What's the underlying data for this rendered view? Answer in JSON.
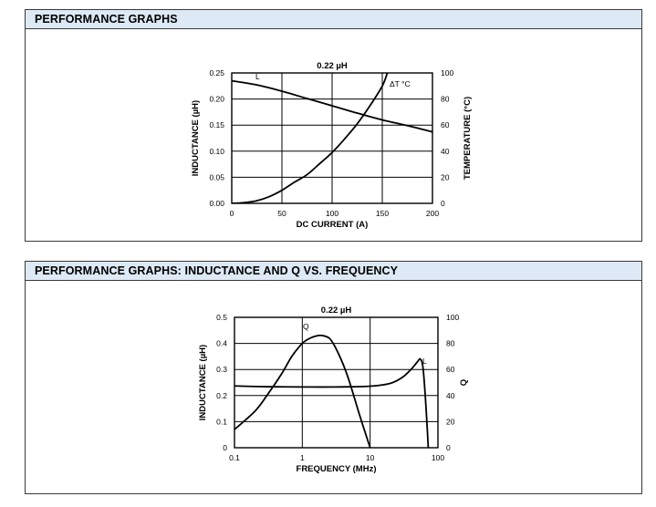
{
  "panels": [
    {
      "header": "PERFORMANCE GRAPHS"
    },
    {
      "header": "PERFORMANCE GRAPHS: INDUCTANCE AND Q VS. FREQUENCY"
    }
  ],
  "chart_data": [
    {
      "type": "line",
      "title": "0.22 µH",
      "xlabel": "DC CURRENT (A)",
      "ylabel": "INDUCTANCE (µH)",
      "y2label": "TEMPERATURE (°C)",
      "xlim": [
        0,
        200
      ],
      "ylim": [
        0,
        0.25
      ],
      "y2lim": [
        0,
        100
      ],
      "x_ticks": [
        "0",
        "50",
        "100",
        "150",
        "200"
      ],
      "y_ticks": [
        "0.00",
        "0.05",
        "0.10",
        "0.15",
        "0.20",
        "0.25"
      ],
      "y2_ticks": [
        "0",
        "20",
        "40",
        "60",
        "80",
        "100"
      ],
      "grid": true,
      "series": [
        {
          "name": "L",
          "axis": "left",
          "x": [
            0,
            25,
            50,
            75,
            100,
            125,
            150,
            175,
            200
          ],
          "y": [
            0.235,
            0.227,
            0.215,
            0.201,
            0.187,
            0.173,
            0.16,
            0.149,
            0.137
          ]
        },
        {
          "name": "ΔT °C",
          "axis": "right",
          "x": [
            0,
            12,
            25,
            37,
            50,
            62,
            75,
            87,
            100,
            112,
            125,
            137,
            150,
            155
          ],
          "y": [
            0,
            0.5,
            2,
            5,
            10,
            16,
            22,
            30,
            39,
            49,
            61,
            74,
            90,
            100
          ]
        }
      ]
    },
    {
      "type": "line",
      "title": "0.22 µH",
      "xlabel": "FREQUENCY (MHz)",
      "ylabel": "INDUCTANCE (µH)",
      "y2label": "Q",
      "x_scale": "log",
      "xlim": [
        0.1,
        100
      ],
      "ylim": [
        0,
        0.5
      ],
      "y2lim": [
        0,
        100
      ],
      "x_ticks": [
        "0.1",
        "1",
        "10",
        "100"
      ],
      "y_ticks": [
        "0",
        "0.1",
        "0.2",
        "0.3",
        "0.4",
        "0.5"
      ],
      "y2_ticks": [
        "0",
        "20",
        "40",
        "60",
        "80",
        "100"
      ],
      "grid": true,
      "series": [
        {
          "name": "L",
          "axis": "left",
          "x": [
            0.1,
            0.3,
            1,
            3,
            10,
            20,
            30,
            40,
            50,
            55,
            60,
            65,
            70,
            72
          ],
          "y": [
            0.237,
            0.234,
            0.233,
            0.233,
            0.236,
            0.247,
            0.27,
            0.3,
            0.33,
            0.34,
            0.31,
            0.2,
            0.06,
            0
          ]
        },
        {
          "name": "Q",
          "axis": "right",
          "x": [
            0.1,
            0.2,
            0.3,
            0.5,
            0.7,
            1,
            1.3,
            1.7,
            2,
            2.5,
            3,
            4,
            5,
            7,
            10
          ],
          "y": [
            14,
            28,
            40,
            57,
            70,
            80,
            84,
            86,
            86,
            84,
            78,
            64,
            50,
            25,
            0
          ]
        }
      ]
    }
  ]
}
